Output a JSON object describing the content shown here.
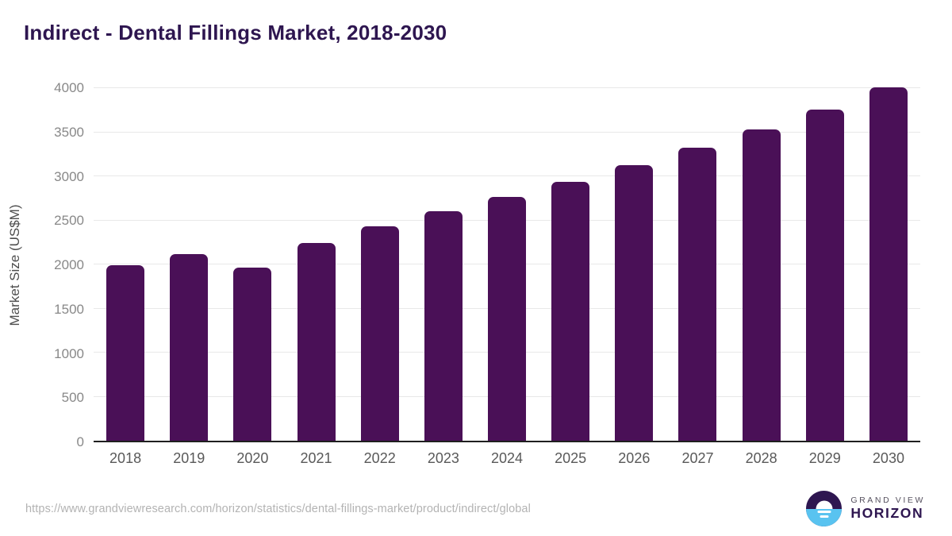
{
  "title": "Indirect - Dental Fillings Market, 2018-2030",
  "chart_data": {
    "type": "bar",
    "title": "Indirect - Dental Fillings Market, 2018-2030",
    "categories": [
      "2018",
      "2019",
      "2020",
      "2021",
      "2022",
      "2023",
      "2024",
      "2025",
      "2026",
      "2027",
      "2028",
      "2029",
      "2030"
    ],
    "values": [
      1990,
      2115,
      1965,
      2245,
      2435,
      2600,
      2765,
      2940,
      3125,
      3320,
      3530,
      3760,
      4010
    ],
    "xlabel": "",
    "ylabel": "Market Size (US$M)",
    "ylim": [
      0,
      4000
    ],
    "yticks": [
      0,
      500,
      1000,
      1500,
      2000,
      2500,
      3000,
      3500,
      4000
    ],
    "grid": "horizontal",
    "legend": "none",
    "bar_color": "#4a1057"
  },
  "colors": {
    "title_text": "#2e1650",
    "bar": "#4a1057",
    "gridline": "#e8e8e8",
    "axis_line": "#1f1f1f",
    "y_tick_text": "#888888",
    "x_tick_text": "#595959",
    "url_text": "#b3b3b3",
    "logo_dark": "#2e1650",
    "logo_blue": "#59c3f0"
  },
  "footer": {
    "source_url": "https://www.grandviewresearch.com/horizon/statistics/dental-fillings-market/product/indirect/global",
    "logo": {
      "line1": "GRAND VIEW",
      "line2": "HORIZON"
    }
  }
}
